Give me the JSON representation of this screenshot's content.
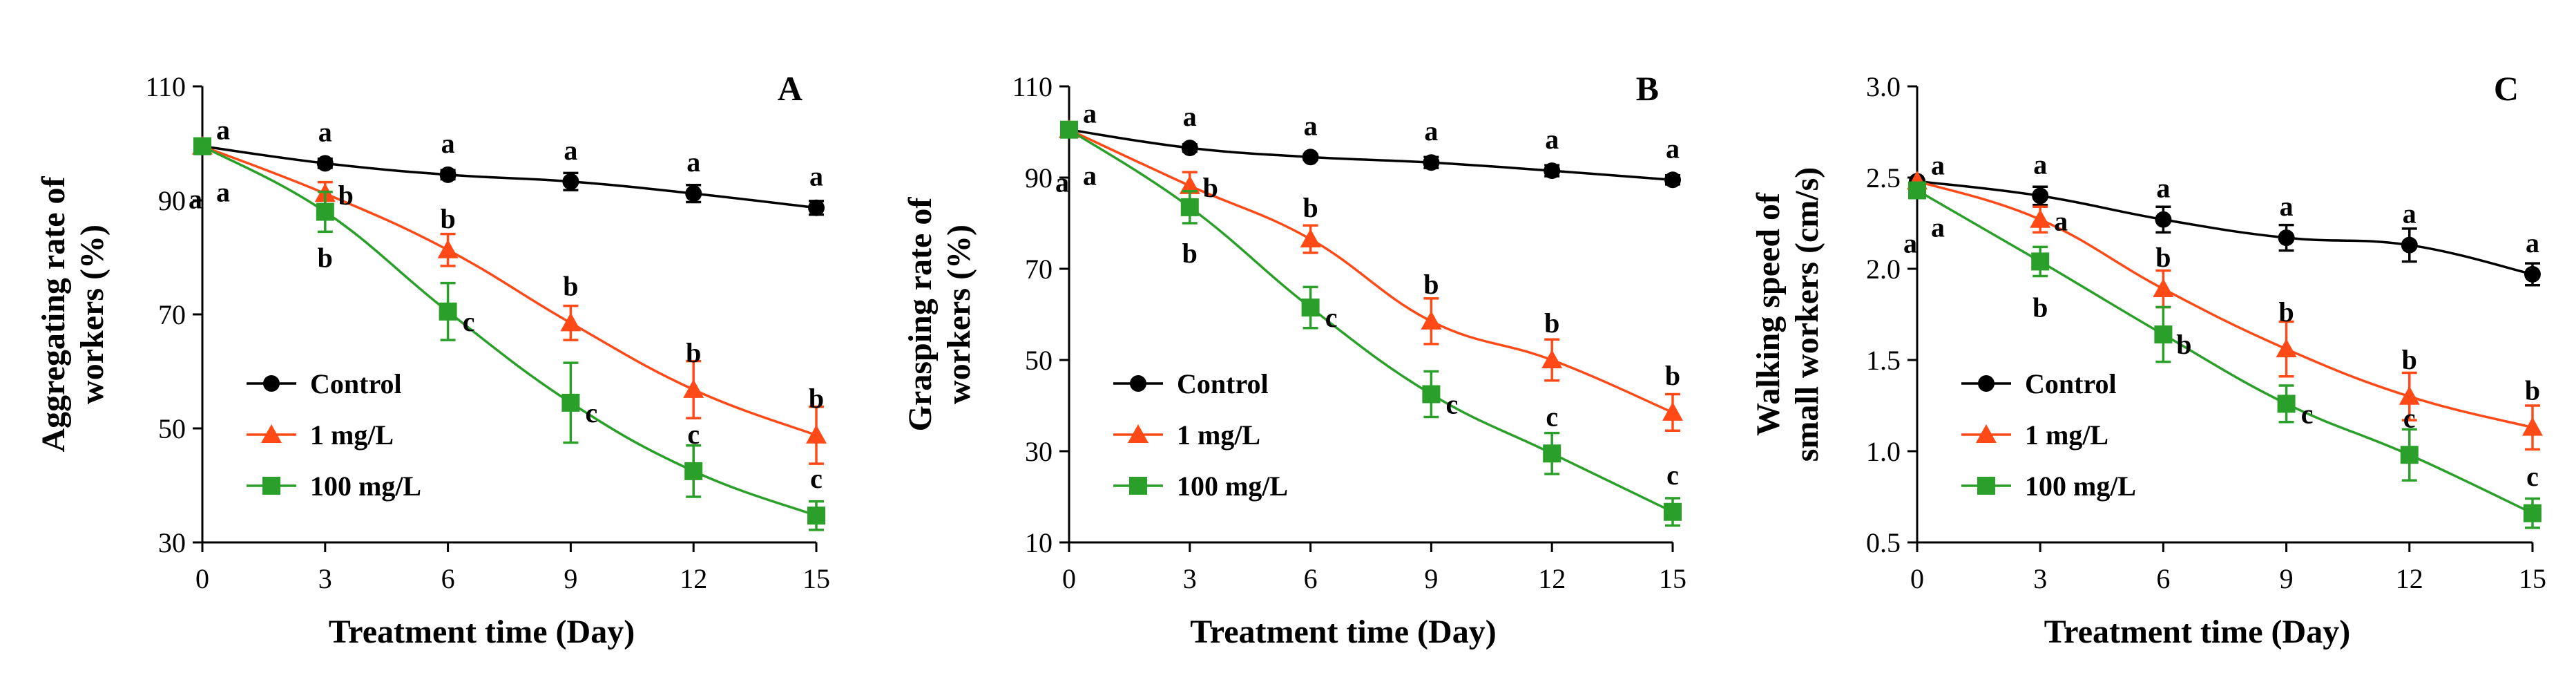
{
  "chart_data": [
    {
      "type": "line",
      "panel": "A",
      "ylabel_lines": [
        "Aggregating rate of",
        "workers (%)"
      ],
      "xlabel": "Treatment time (Day)",
      "x": [
        0,
        3,
        6,
        9,
        12,
        15
      ],
      "x_ticks": [
        "0",
        "3",
        "6",
        "9",
        "12",
        "15"
      ],
      "ylim": [
        30,
        110
      ],
      "y_ticks": [
        "30",
        "50",
        "70",
        "90",
        "110"
      ],
      "y_tick_values": [
        30,
        50,
        70,
        90,
        110
      ],
      "series": [
        {
          "name": "Control",
          "values": [
            99.5,
            96.5,
            94.5,
            93.3,
            91.2,
            88.7
          ],
          "errors": [
            0,
            0.8,
            0.8,
            1.5,
            1.5,
            1.2
          ],
          "letters": [
            "a",
            "a",
            "a",
            "a",
            "a",
            "a"
          ]
        },
        {
          "name": "1 mg/L",
          "values": [
            99.5,
            91.2,
            81.3,
            68.5,
            56.8,
            48.8
          ],
          "errors": [
            0,
            2.0,
            2.8,
            3.0,
            5.0,
            5.0
          ],
          "letters": [
            "a",
            "b",
            "b",
            "b",
            "b",
            "b"
          ]
        },
        {
          "name": "100 mg/L",
          "values": [
            99.5,
            88.0,
            70.5,
            54.5,
            42.5,
            34.7
          ],
          "errors": [
            0,
            3.5,
            5.0,
            7.0,
            4.5,
            2.5
          ],
          "letters": [
            "a",
            "b",
            "c",
            "c",
            "c",
            "c"
          ]
        }
      ]
    },
    {
      "type": "line",
      "panel": "B",
      "ylabel_lines": [
        "Grasping rate of",
        "workers (%)"
      ],
      "xlabel": "Treatment time (Day)",
      "x": [
        0,
        3,
        6,
        9,
        12,
        15
      ],
      "x_ticks": [
        "0",
        "3",
        "6",
        "9",
        "12",
        "15"
      ],
      "ylim": [
        10,
        110
      ],
      "y_ticks": [
        "10",
        "30",
        "50",
        "70",
        "90",
        "110"
      ],
      "y_tick_values": [
        10,
        30,
        50,
        70,
        90,
        110
      ],
      "series": [
        {
          "name": "Control",
          "values": [
            100.5,
            96.5,
            94.5,
            93.3,
            91.5,
            89.5
          ],
          "errors": [
            0,
            0.8,
            0.6,
            1.2,
            1.2,
            1.0
          ],
          "letters": [
            "a",
            "a",
            "a",
            "a",
            "a",
            "a"
          ]
        },
        {
          "name": "1 mg/L",
          "values": [
            100.5,
            88.2,
            76.5,
            58.5,
            50.0,
            38.5
          ],
          "errors": [
            0,
            3.0,
            3.0,
            5.0,
            4.5,
            4.0
          ],
          "letters": [
            "a",
            "b",
            "b",
            "b",
            "b",
            "b"
          ]
        },
        {
          "name": "100 mg/L",
          "values": [
            100.5,
            83.5,
            61.5,
            42.5,
            29.5,
            16.7
          ],
          "errors": [
            0,
            3.5,
            4.5,
            5.0,
            4.5,
            3.0
          ],
          "letters": [
            "a",
            "b",
            "c",
            "c",
            "c",
            "c"
          ]
        }
      ]
    },
    {
      "type": "line",
      "panel": "C",
      "ylabel_lines": [
        "Walking speed of",
        "small workers (cm/s)"
      ],
      "xlabel": "Treatment time (Day)",
      "x": [
        0,
        3,
        6,
        9,
        12,
        15
      ],
      "x_ticks": [
        "0",
        "3",
        "6",
        "9",
        "12",
        "15"
      ],
      "ylim": [
        0.5,
        3.0
      ],
      "y_ticks": [
        "0.5",
        "1.0",
        "1.5",
        "2.0",
        "2.5",
        "3.0"
      ],
      "y_tick_values": [
        0.5,
        1.0,
        1.5,
        2.0,
        2.5,
        3.0
      ],
      "series": [
        {
          "name": "Control",
          "values": [
            2.48,
            2.4,
            2.27,
            2.17,
            2.13,
            1.97
          ],
          "errors": [
            0,
            0.05,
            0.07,
            0.07,
            0.09,
            0.06
          ],
          "letters": [
            "a",
            "a",
            "a",
            "a",
            "a",
            "a"
          ]
        },
        {
          "name": "1 mg/L",
          "values": [
            2.48,
            2.27,
            1.89,
            1.56,
            1.3,
            1.13
          ],
          "errors": [
            0,
            0.07,
            0.1,
            0.15,
            0.13,
            0.12
          ],
          "letters": [
            "a",
            "a",
            "b",
            "b",
            "b",
            "b"
          ]
        },
        {
          "name": "100 mg/L",
          "values": [
            2.43,
            2.04,
            1.64,
            1.26,
            0.98,
            0.66
          ],
          "errors": [
            0,
            0.08,
            0.15,
            0.1,
            0.14,
            0.08
          ],
          "letters": [
            "a",
            "b",
            "b",
            "c",
            "c",
            "c"
          ]
        }
      ]
    }
  ],
  "styles": {
    "series_colors": [
      "#000000",
      "#ff4a17",
      "#2aa02a"
    ],
    "series_markers": [
      "circle",
      "triangle",
      "square"
    ],
    "axis_color": "#000000"
  }
}
